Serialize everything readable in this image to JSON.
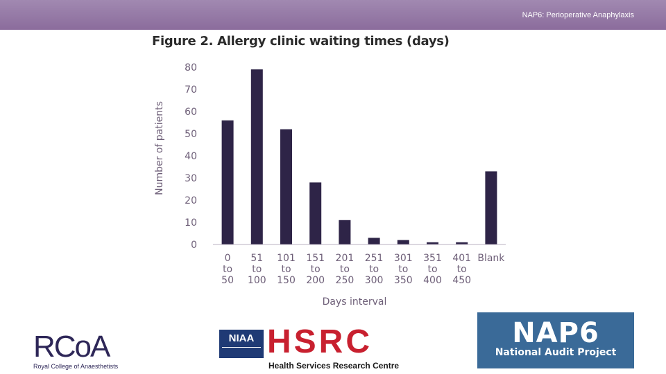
{
  "header": {
    "title": "NAP6: Perioperative Anaphylaxis"
  },
  "chart_data": {
    "type": "bar",
    "title": "Figure 2. Allergy clinic waiting times (days)",
    "xlabel": "Days interval",
    "ylabel": "Number of patients",
    "ylim": [
      0,
      80
    ],
    "yticks": [
      0,
      10,
      20,
      30,
      40,
      50,
      60,
      70,
      80
    ],
    "grid": false,
    "categories": [
      [
        "0",
        "to",
        "50"
      ],
      [
        "51",
        "to",
        "100"
      ],
      [
        "101",
        "to",
        "150"
      ],
      [
        "151",
        "to",
        "200"
      ],
      [
        "201",
        "to",
        "250"
      ],
      [
        "251",
        "to",
        "300"
      ],
      [
        "301",
        "to",
        "350"
      ],
      [
        "351",
        "to",
        "400"
      ],
      [
        "401",
        "to",
        "450"
      ],
      [
        "Blank"
      ]
    ],
    "values": [
      56,
      79,
      52,
      28,
      11,
      3,
      2,
      1,
      1,
      33
    ],
    "bar_color": "#2e2447"
  },
  "logos": {
    "rcoa": {
      "name": "RCoA",
      "subtitle": "Royal College of Anaesthetists"
    },
    "niaa": {
      "name": "NIAA"
    },
    "hsrc": {
      "name": "HSRC",
      "subtitle": "Health Services Research Centre"
    },
    "nap6": {
      "name": "NAP6",
      "subtitle": "National Audit Project"
    }
  }
}
